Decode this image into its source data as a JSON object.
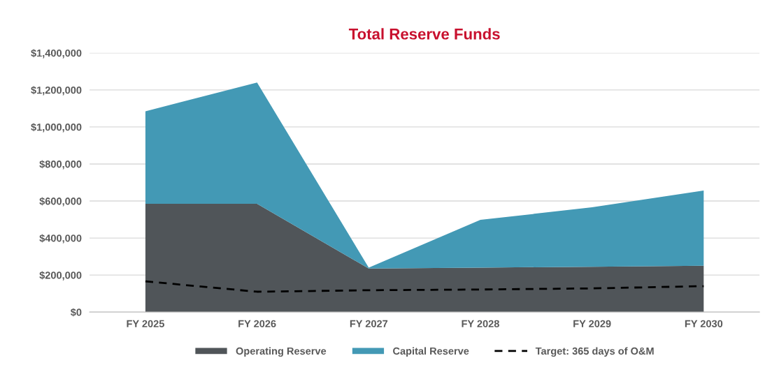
{
  "chart_data": {
    "type": "area",
    "title": "Total Reserve Funds",
    "stacked": true,
    "categories": [
      "FY 2025",
      "FY 2026",
      "FY 2027",
      "FY 2028",
      "FY 2029",
      "FY 2030"
    ],
    "series": [
      {
        "name": "Operating Reserve",
        "color": "#505559",
        "values": [
          585000,
          585000,
          235000,
          240000,
          245000,
          250000
        ]
      },
      {
        "name": "Capital Reserve",
        "color": "#4399b5",
        "values": [
          500000,
          655000,
          5000,
          258000,
          321000,
          407000
        ]
      },
      {
        "name": "Target: 365 days of O&M",
        "type": "line",
        "line_style": "dashed",
        "color": "#000000",
        "values": [
          166000,
          110000,
          118000,
          122000,
          128000,
          140000
        ]
      }
    ],
    "ylim": [
      0,
      1400000
    ],
    "yticks": [
      {
        "value": 0,
        "label": "$0"
      },
      {
        "value": 200000,
        "label": "$200,000"
      },
      {
        "value": 400000,
        "label": "$400,000"
      },
      {
        "value": 600000,
        "label": "$600,000"
      },
      {
        "value": 800000,
        "label": "$800,000"
      },
      {
        "value": 1000000,
        "label": "$1,000,000"
      },
      {
        "value": 1200000,
        "label": "$1,200,000"
      },
      {
        "value": 1400000,
        "label": "$1,400,000"
      }
    ],
    "grid": "y",
    "legend": "bottom"
  }
}
